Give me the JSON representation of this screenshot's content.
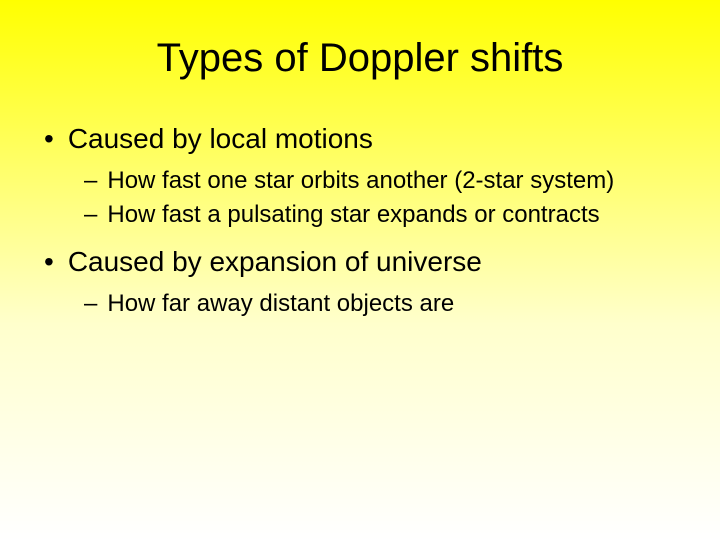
{
  "background": {
    "gradient_start": "#ffff00",
    "gradient_mid1": "#ffff66",
    "gradient_mid2": "#ffffcc",
    "gradient_end": "#ffffff"
  },
  "title": {
    "text": "Types of Doppler shifts",
    "fontsize": 40,
    "color": "#000000"
  },
  "bullets": [
    {
      "level": 1,
      "marker": "•",
      "text": "Caused by local motions",
      "fontsize": 28
    },
    {
      "level": 2,
      "marker": "–",
      "text": "How fast one star orbits another (2-star system)",
      "fontsize": 24
    },
    {
      "level": 2,
      "marker": "–",
      "text": "How fast a pulsating star expands or contracts",
      "fontsize": 24
    },
    {
      "level": 1,
      "marker": "•",
      "text": "Caused by expansion of universe",
      "fontsize": 28
    },
    {
      "level": 2,
      "marker": "–",
      "text": "How far away distant objects are",
      "fontsize": 24
    }
  ]
}
